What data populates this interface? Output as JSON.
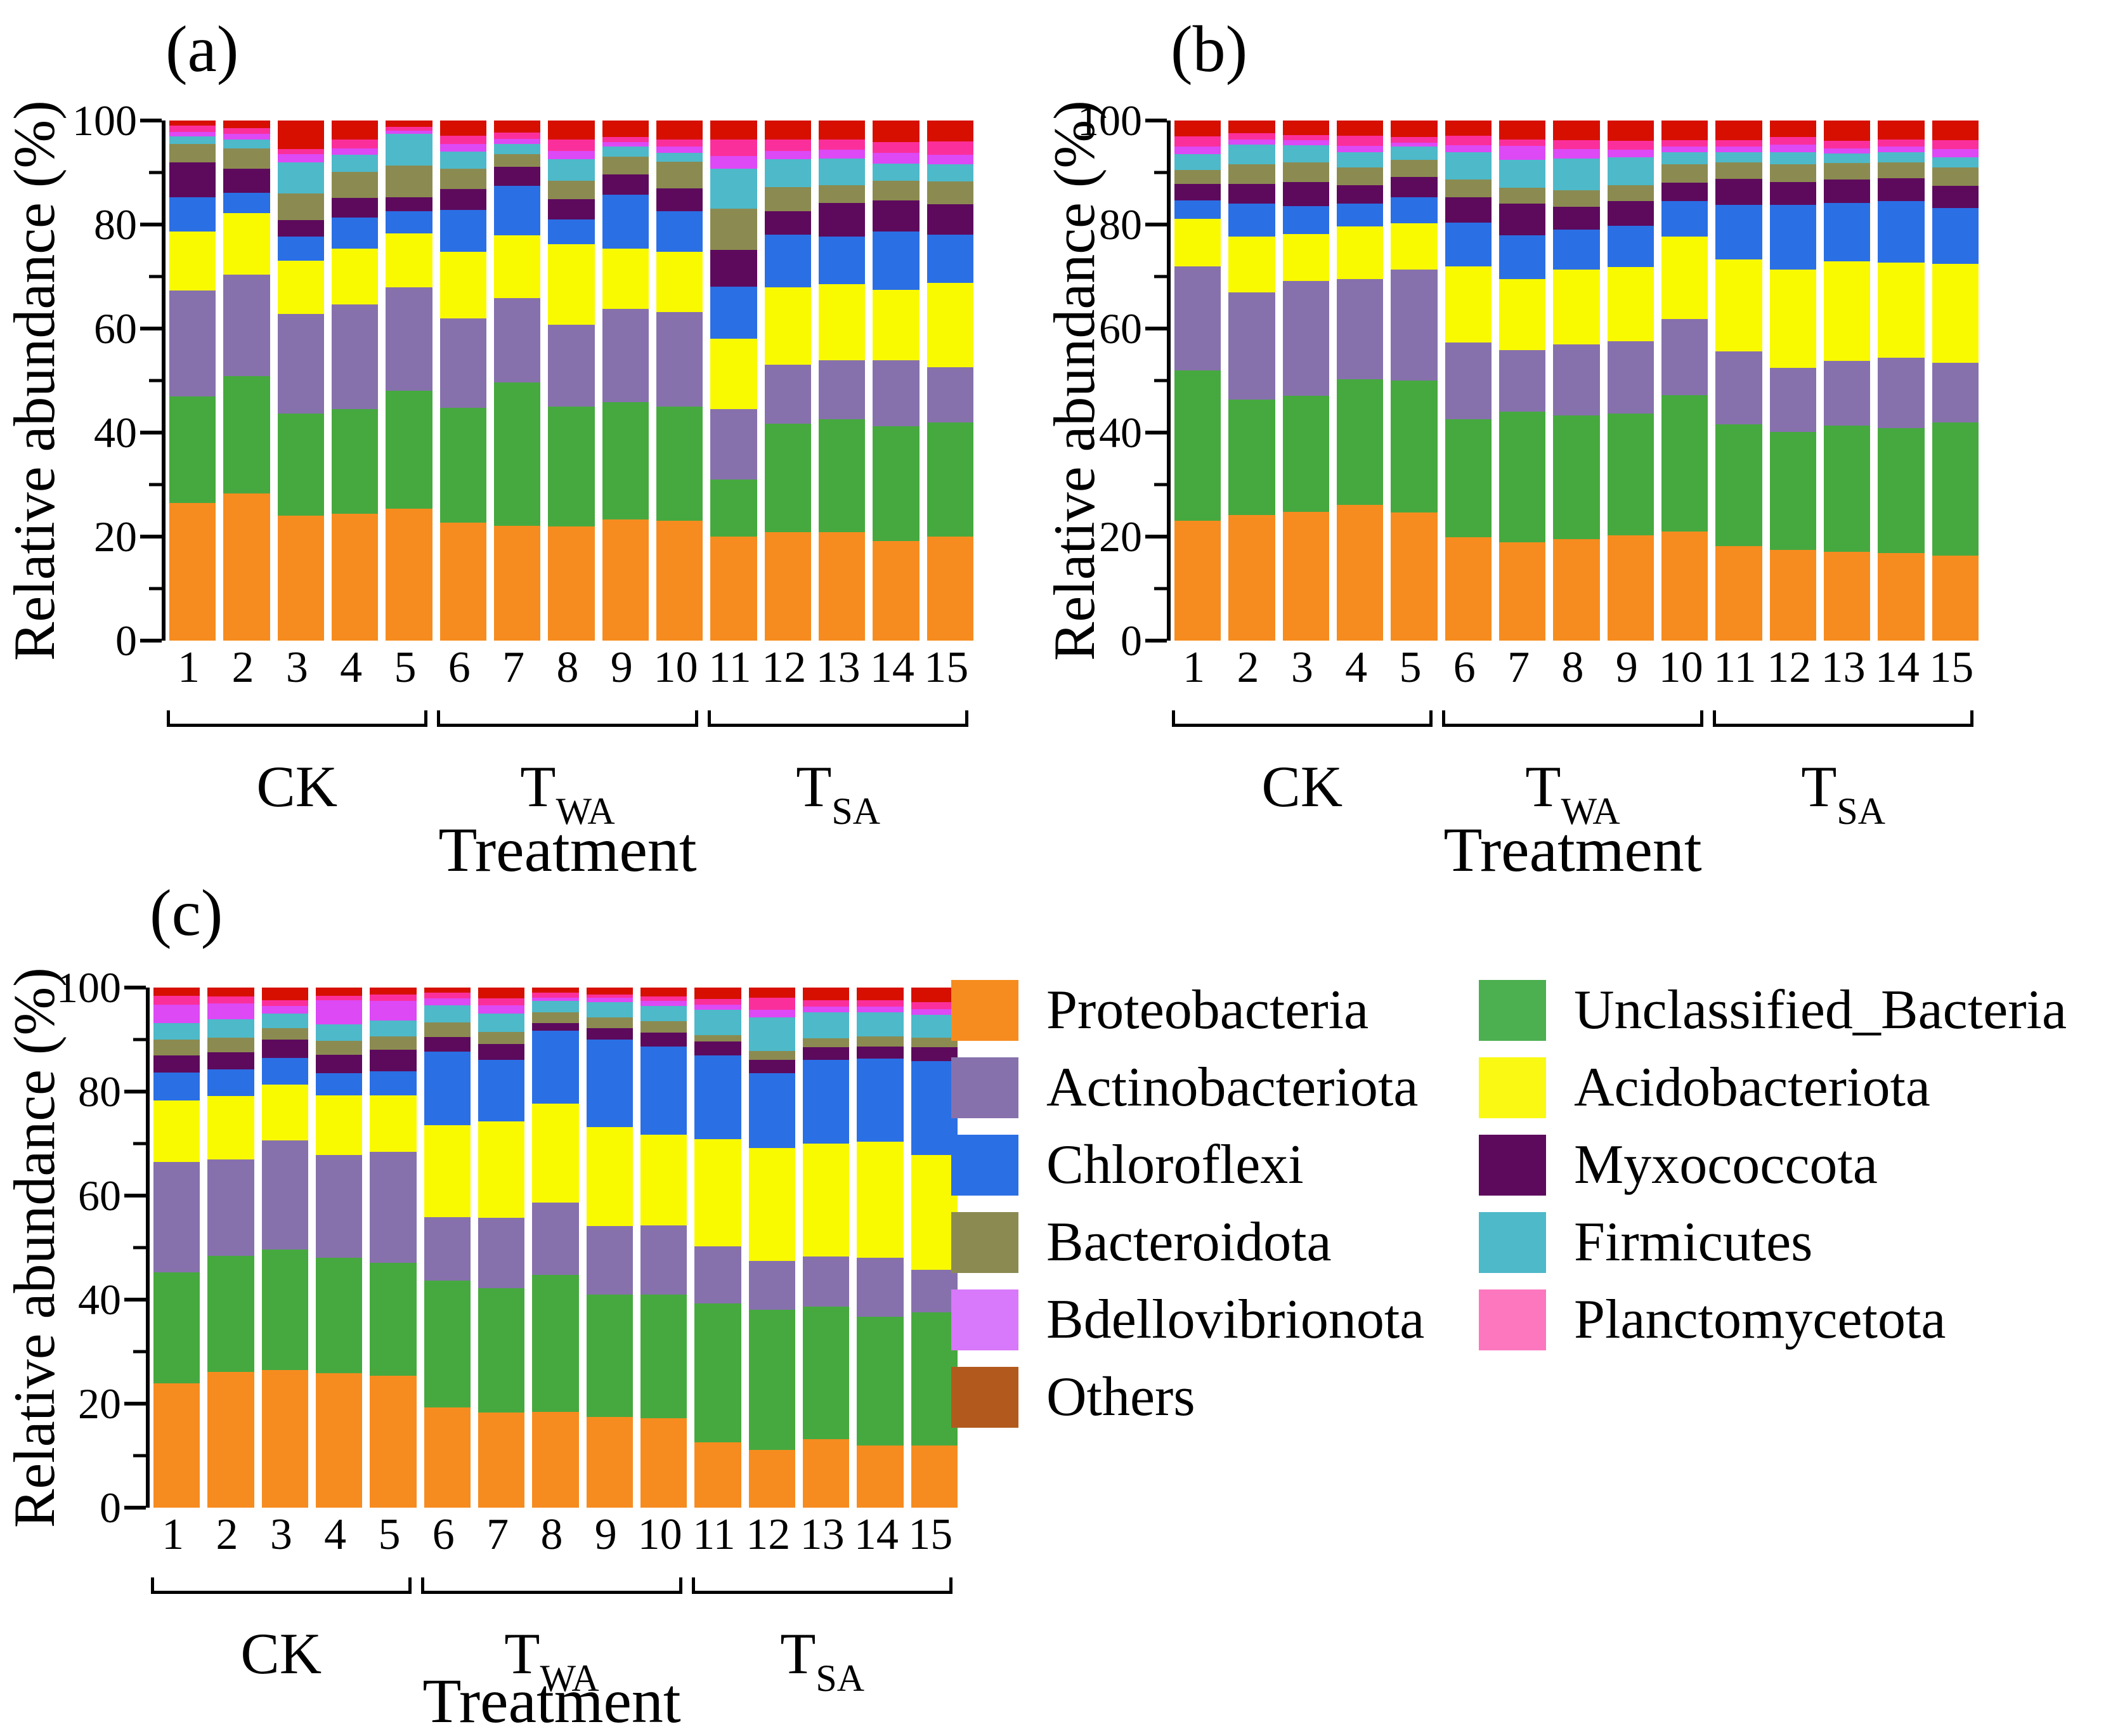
{
  "series": [
    {
      "name": "Proteobacteria",
      "color": "#F68C1F",
      "legend_color": "#F68C1F"
    },
    {
      "name": "Unclassified_Bacteria",
      "color": "#46A93F",
      "legend_color": "#4CAF50"
    },
    {
      "name": "Actinobacteriota",
      "color": "#8671AC",
      "legend_color": "#8671AC"
    },
    {
      "name": "Acidobacteriota",
      "color": "#F9F900",
      "legend_color": "#F9F914"
    },
    {
      "name": "Chloroflexi",
      "color": "#2B6FE4",
      "legend_color": "#2B6FE4"
    },
    {
      "name": "Myxococcota",
      "color": "#5D0A5D",
      "legend_color": "#5D0A5D"
    },
    {
      "name": "Bacteroidota",
      "color": "#8B8B51",
      "legend_color": "#8B8B51"
    },
    {
      "name": "Firmicutes",
      "color": "#4EB9C9",
      "legend_color": "#4EB9C9"
    },
    {
      "name": "Bdellovibrionota",
      "color": "#DC49F5",
      "legend_color": "#D878FA"
    },
    {
      "name": "Planctomycetota",
      "color": "#FB2F9B",
      "legend_color": "#FC77BE"
    },
    {
      "name": "Others",
      "color": "#D60F00",
      "legend_color": "#B25A1D"
    }
  ],
  "legend": {
    "left_column": [
      0,
      2,
      4,
      6,
      8,
      10
    ],
    "right_column": [
      1,
      3,
      5,
      7,
      9
    ]
  },
  "y_axis": {
    "label": "Relative abundance (%)",
    "ticks": [
      0,
      20,
      40,
      60,
      80,
      100
    ],
    "minor_ticks": [
      10,
      30,
      50,
      70,
      90
    ],
    "range": [
      0,
      100
    ]
  },
  "x_axis": {
    "label": "Treatment",
    "categories": [
      "1",
      "2",
      "3",
      "4",
      "5",
      "6",
      "7",
      "8",
      "9",
      "10",
      "11",
      "12",
      "13",
      "14",
      "15"
    ],
    "groups": [
      {
        "label": "CK",
        "base": "CK",
        "sub": "",
        "span": [
          1,
          5
        ]
      },
      {
        "label": "T_WA",
        "base": "T",
        "sub": "WA",
        "span": [
          6,
          10
        ]
      },
      {
        "label": "T_SA",
        "base": "T",
        "sub": "SA",
        "span": [
          11,
          15
        ]
      }
    ]
  },
  "chart_data": [
    {
      "id": "a",
      "title": "(a)",
      "type": "bar",
      "stacked": true,
      "ylabel": "Relative abundance (%)",
      "xlabel": "Treatment",
      "ylim": [
        0,
        100
      ],
      "yticks": [
        0,
        20,
        40,
        60,
        80,
        100
      ],
      "yticks_minor": [
        10,
        30,
        50,
        70,
        90
      ],
      "categories": [
        "1",
        "2",
        "3",
        "4",
        "5",
        "6",
        "7",
        "8",
        "9",
        "10",
        "11",
        "12",
        "13",
        "14",
        "15"
      ],
      "group_labels": [
        {
          "label": "CK",
          "base": "CK",
          "sub": "",
          "span": [
            1,
            5
          ]
        },
        {
          "label": "T_WA",
          "base": "T",
          "sub": "WA",
          "span": [
            6,
            10
          ]
        },
        {
          "label": "T_SA",
          "base": "T",
          "sub": "SA",
          "span": [
            11,
            15
          ]
        }
      ],
      "series": [
        {
          "name": "Proteobacteria",
          "values": [
            26.5,
            28.3,
            24,
            24.4,
            25.4,
            22.7,
            22.1,
            21.9,
            23.3,
            23.1,
            20,
            20.8,
            20.8,
            19.2,
            20
          ]
        },
        {
          "name": "Unclassified_Bacteria",
          "values": [
            20.5,
            22.5,
            19.6,
            20.1,
            22.7,
            22.1,
            27.5,
            23.1,
            22.6,
            21.9,
            11,
            20.9,
            21.8,
            22,
            21.9
          ]
        },
        {
          "name": "Actinobacteriota",
          "values": [
            20.3,
            19.6,
            19.2,
            20.1,
            19.8,
            17.2,
            16.3,
            15.7,
            17.9,
            18.2,
            13.5,
            11.4,
            11.3,
            12.7,
            10.7
          ]
        },
        {
          "name": "Acidobacteriota",
          "values": [
            11.4,
            11.8,
            10.2,
            10.8,
            10.4,
            12.8,
            12,
            15.5,
            11.6,
            11.6,
            13.5,
            14.8,
            14.7,
            13.6,
            16.2
          ]
        },
        {
          "name": "Chloroflexi",
          "values": [
            6.6,
            3.9,
            4.7,
            6,
            4.3,
            8,
            9.5,
            4.8,
            10.4,
            7.8,
            10,
            10.2,
            9.1,
            11.2,
            9.3
          ]
        },
        {
          "name": "Myxococcota",
          "values": [
            6.6,
            4.6,
            3.1,
            3.7,
            2.7,
            4,
            3.7,
            3.9,
            3.9,
            4.4,
            7.1,
            4.5,
            6.4,
            6,
            5.8
          ]
        },
        {
          "name": "Bacteroidota",
          "values": [
            3.6,
            3.9,
            5.2,
            5,
            6,
            3.9,
            2.5,
            3.5,
            3.3,
            5.1,
            8,
            4.6,
            3.5,
            3.7,
            4.4
          ]
        },
        {
          "name": "Firmicutes",
          "values": [
            1.5,
            1.7,
            6,
            3.3,
            6.2,
            3.3,
            1.9,
            4.2,
            2,
            1.7,
            7.7,
            5.4,
            5.1,
            3.3,
            3.3
          ]
        },
        {
          "name": "Bdellovibrionota",
          "values": [
            0.8,
            1.2,
            1.5,
            1.2,
            0.6,
            1.5,
            1,
            1.6,
            0.9,
            1.2,
            2.4,
            1.6,
            1.7,
            2.1,
            1.8
          ]
        },
        {
          "name": "Planctomycetota",
          "values": [
            1.2,
            1,
            1,
            1.7,
            0.7,
            1.6,
            1.2,
            2.1,
            1,
            1.3,
            3.1,
            2.1,
            2,
            2.1,
            2.6
          ]
        },
        {
          "name": "Others",
          "values": [
            1,
            1.5,
            5.5,
            3.7,
            1.2,
            2.9,
            2.3,
            3.7,
            3.1,
            3.7,
            3.7,
            3.7,
            3.6,
            4.1,
            4
          ]
        }
      ]
    },
    {
      "id": "b",
      "title": "(b)",
      "type": "bar",
      "stacked": true,
      "ylabel": "Relative abundance (%)",
      "xlabel": "Treatment",
      "ylim": [
        0,
        100
      ],
      "yticks": [
        0,
        20,
        40,
        60,
        80,
        100
      ],
      "yticks_minor": [
        10,
        30,
        50,
        70,
        90
      ],
      "categories": [
        "1",
        "2",
        "3",
        "4",
        "5",
        "6",
        "7",
        "8",
        "9",
        "10",
        "11",
        "12",
        "13",
        "14",
        "15"
      ],
      "group_labels": [
        {
          "label": "CK",
          "base": "CK",
          "sub": "",
          "span": [
            1,
            5
          ]
        },
        {
          "label": "T_WA",
          "base": "T",
          "sub": "WA",
          "span": [
            6,
            10
          ]
        },
        {
          "label": "T_SA",
          "base": "T",
          "sub": "SA",
          "span": [
            11,
            15
          ]
        }
      ],
      "series": [
        {
          "name": "Proteobacteria",
          "values": [
            23.1,
            24.1,
            24.8,
            26.1,
            24.6,
            19.9,
            18.9,
            19.5,
            20.2,
            21,
            18.2,
            17.4,
            17.1,
            16.8,
            16.4
          ]
        },
        {
          "name": "Unclassified_Bacteria",
          "values": [
            28.9,
            22.3,
            22.3,
            24.1,
            25.4,
            22.7,
            25.1,
            23.8,
            23.5,
            26.2,
            23.4,
            22.7,
            24.2,
            24.1,
            25.6
          ]
        },
        {
          "name": "Actinobacteriota",
          "values": [
            20,
            20.6,
            22.1,
            19.3,
            21.4,
            14.7,
            11.9,
            13.6,
            13.9,
            14.6,
            14,
            12.4,
            12.5,
            13.5,
            11.4
          ]
        },
        {
          "name": "Acidobacteriota",
          "values": [
            9.1,
            10.7,
            9,
            10.1,
            8.9,
            14.7,
            13.6,
            14.5,
            14.2,
            15.9,
            17.7,
            18.9,
            19.1,
            18.3,
            19
          ]
        },
        {
          "name": "Chloroflexi",
          "values": [
            3.5,
            6.3,
            5.4,
            4.4,
            5,
            8.4,
            8.4,
            7.6,
            8,
            6.8,
            10.5,
            12.4,
            11.3,
            11.8,
            10.8
          ]
        },
        {
          "name": "Myxococcota",
          "values": [
            3.2,
            3.8,
            4.6,
            3.6,
            3.9,
            4.9,
            6.1,
            4.4,
            4.7,
            3.5,
            5,
            4.4,
            4.5,
            4.4,
            4.2
          ]
        },
        {
          "name": "Bacteroidota",
          "values": [
            2.7,
            3.8,
            3.8,
            3.4,
            3.2,
            3.4,
            3.1,
            3.2,
            3.1,
            3.6,
            3.2,
            3.4,
            3.1,
            3.1,
            3.6
          ]
        },
        {
          "name": "Firmicutes",
          "values": [
            3,
            3.8,
            3.2,
            2.9,
            2.6,
            5.2,
            5.3,
            6.1,
            5.3,
            2.3,
            1.9,
            2.3,
            1.9,
            1.9,
            1.9
          ]
        },
        {
          "name": "Bdellovibrionota",
          "values": [
            1.5,
            1,
            1,
            1.2,
            0.8,
            1.3,
            2.7,
            1.8,
            1.5,
            1.1,
            1.1,
            1.5,
            1,
            1.1,
            1.6
          ]
        },
        {
          "name": "Planctomycetota",
          "values": [
            2,
            1.2,
            1,
            2,
            1,
            1.9,
            1.3,
            1.7,
            1.7,
            1.2,
            1.2,
            1.4,
            1.4,
            1.4,
            1.7
          ]
        },
        {
          "name": "Others",
          "values": [
            3,
            2.4,
            2.8,
            2.9,
            3.2,
            2.9,
            3.6,
            3.8,
            3.9,
            3.8,
            3.8,
            3.2,
            3.9,
            3.6,
            3.8
          ]
        }
      ]
    },
    {
      "id": "c",
      "title": "(c)",
      "type": "bar",
      "stacked": true,
      "ylabel": "Relative abundance (%)",
      "xlabel": "Treatment",
      "ylim": [
        0,
        100
      ],
      "yticks": [
        0,
        20,
        40,
        60,
        80,
        100
      ],
      "yticks_minor": [
        10,
        30,
        50,
        70,
        90
      ],
      "categories": [
        "1",
        "2",
        "3",
        "4",
        "5",
        "6",
        "7",
        "8",
        "9",
        "10",
        "11",
        "12",
        "13",
        "14",
        "15"
      ],
      "group_labels": [
        {
          "label": "CK",
          "base": "CK",
          "sub": "",
          "span": [
            1,
            5
          ]
        },
        {
          "label": "T_WA",
          "base": "T",
          "sub": "WA",
          "span": [
            6,
            10
          ]
        },
        {
          "label": "T_SA",
          "base": "T",
          "sub": "SA",
          "span": [
            11,
            15
          ]
        }
      ],
      "series": [
        {
          "name": "Proteobacteria",
          "values": [
            23.9,
            26.1,
            26.5,
            25.9,
            25.4,
            19.3,
            18.3,
            18.4,
            17.4,
            17.2,
            12.6,
            11.1,
            13.2,
            12,
            11.9
          ]
        },
        {
          "name": "Unclassified_Bacteria",
          "values": [
            21.3,
            22.3,
            23.1,
            22.1,
            21.7,
            24.4,
            23.9,
            26.4,
            23.6,
            23.8,
            26.7,
            27,
            25.5,
            24.7,
            25.7
          ]
        },
        {
          "name": "Actinobacteriota",
          "values": [
            21.3,
            18.6,
            21,
            19.8,
            21.3,
            12.1,
            13.5,
            13.9,
            13.1,
            13.3,
            11,
            9.3,
            9.6,
            11.3,
            8.1
          ]
        },
        {
          "name": "Acidobacteriota",
          "values": [
            11.8,
            12.1,
            10.7,
            11.5,
            10.9,
            17.7,
            18.6,
            19,
            19.1,
            17.4,
            20.6,
            21.7,
            21.7,
            22.4,
            22.1
          ]
        },
        {
          "name": "Chloroflexi",
          "values": [
            5.4,
            5.2,
            5.2,
            4.2,
            4.6,
            14.2,
            11.8,
            14,
            16.8,
            17,
            16.1,
            14.4,
            16.1,
            15.9,
            18.1
          ]
        },
        {
          "name": "Myxococcota",
          "values": [
            3.3,
            3.3,
            3.5,
            3.6,
            4.1,
            2.8,
            3,
            1.5,
            2.2,
            2.6,
            2.6,
            2.6,
            2.4,
            2.4,
            2.6
          ]
        },
        {
          "name": "Bacteroidota",
          "values": [
            3,
            2.8,
            2.2,
            2.6,
            2.6,
            2.8,
            2.4,
            2,
            2.1,
            2.2,
            1.3,
            1.7,
            1.8,
            1.9,
            1.9
          ]
        },
        {
          "name": "Firmicutes",
          "values": [
            3.2,
            3.5,
            2.8,
            3.2,
            3.1,
            3.3,
            3.5,
            2.2,
            2.9,
            3,
            4.8,
            6.5,
            4.9,
            4.6,
            4.4
          ]
        },
        {
          "name": "Bdellovibrionota",
          "values": [
            3.5,
            3.1,
            1.5,
            4.7,
            3.7,
            1.3,
            1.6,
            0.7,
            0.9,
            0.9,
            1,
            1.4,
            1.1,
            1.1,
            1.1
          ]
        },
        {
          "name": "Planctomycetota",
          "values": [
            1.7,
            1.3,
            1.1,
            0.8,
            1.3,
            1.1,
            1.3,
            0.9,
            0.6,
            0.9,
            1.1,
            2.4,
            1.3,
            1.3,
            1.3
          ]
        },
        {
          "name": "Others",
          "values": [
            1.6,
            1.7,
            2.4,
            1.6,
            1.3,
            1,
            2.1,
            1,
            1.3,
            1.7,
            2.2,
            1.9,
            2.4,
            2.4,
            2.8
          ]
        }
      ]
    }
  ]
}
